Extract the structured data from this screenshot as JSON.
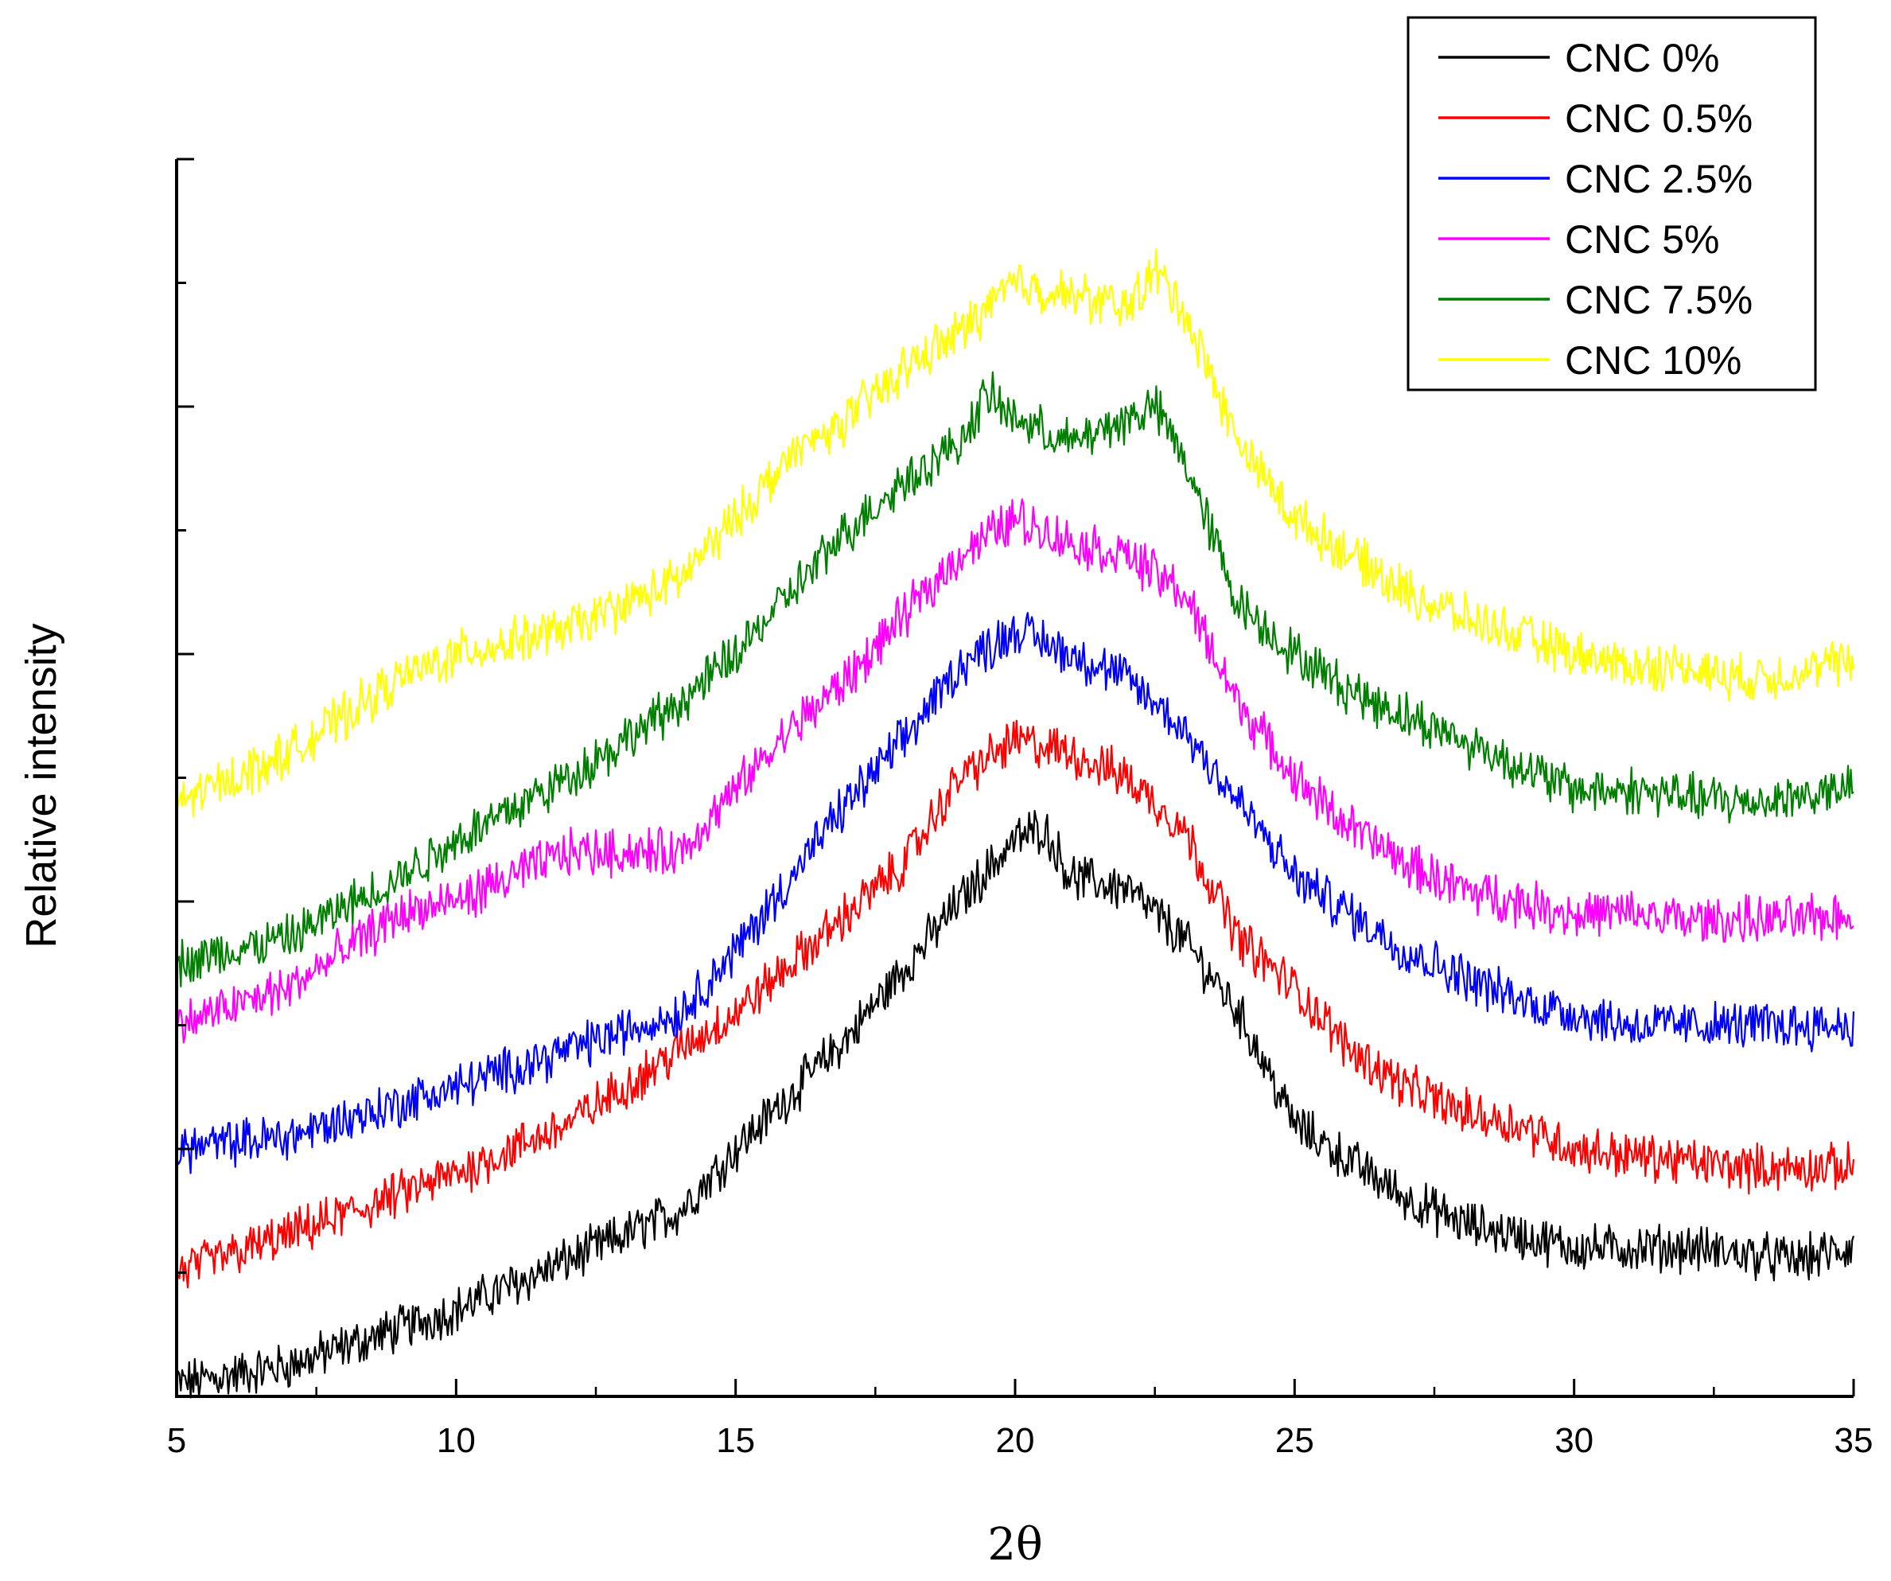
{
  "chart_data": {
    "type": "line",
    "title": "",
    "xlabel": "2θ",
    "ylabel": "Relative intensity",
    "xlim": [
      5,
      35
    ],
    "xticks": [
      5,
      10,
      15,
      20,
      25,
      30,
      35
    ],
    "ylim": [
      0,
      10
    ],
    "yticks_shown": false,
    "legend_position": "top-right",
    "grid": false,
    "series": [
      {
        "name": "CNC 0%",
        "color": "#000000",
        "points": [
          [
            5,
            0.1
          ],
          [
            7,
            0.25
          ],
          [
            10,
            0.7
          ],
          [
            12,
            1.1
          ],
          [
            14,
            1.5
          ],
          [
            15,
            2.0
          ],
          [
            17,
            2.9
          ],
          [
            19,
            4.0
          ],
          [
            20,
            4.5
          ],
          [
            20.5,
            4.6
          ],
          [
            21,
            4.2
          ],
          [
            22,
            4.1
          ],
          [
            23,
            3.7
          ],
          [
            24,
            3.1
          ],
          [
            25,
            2.2
          ],
          [
            26,
            1.9
          ],
          [
            27,
            1.6
          ],
          [
            28,
            1.4
          ],
          [
            29,
            1.3
          ],
          [
            30,
            1.2
          ],
          [
            31,
            1.2
          ],
          [
            32,
            1.2
          ],
          [
            33,
            1.15
          ],
          [
            34,
            1.1
          ],
          [
            35,
            1.2
          ]
        ]
      },
      {
        "name": "CNC 0.5%",
        "color": "#ff0000",
        "points": [
          [
            5,
            1.0
          ],
          [
            7,
            1.3
          ],
          [
            10,
            1.8
          ],
          [
            12,
            2.2
          ],
          [
            14,
            2.8
          ],
          [
            15,
            3.1
          ],
          [
            17,
            3.9
          ],
          [
            18,
            4.3
          ],
          [
            19,
            5.0
          ],
          [
            20,
            5.3
          ],
          [
            21,
            5.2
          ],
          [
            22,
            5.0
          ],
          [
            23,
            4.6
          ],
          [
            24,
            3.7
          ],
          [
            25,
            3.3
          ],
          [
            26,
            2.8
          ],
          [
            27,
            2.5
          ],
          [
            28,
            2.3
          ],
          [
            29,
            2.2
          ],
          [
            30,
            2.0
          ],
          [
            31,
            1.95
          ],
          [
            32,
            1.9
          ],
          [
            33,
            1.85
          ],
          [
            34,
            1.85
          ],
          [
            35,
            1.85
          ]
        ]
      },
      {
        "name": "CNC 2.5%",
        "color": "#0000ff",
        "points": [
          [
            5,
            2.0
          ],
          [
            7,
            2.1
          ],
          [
            10,
            2.5
          ],
          [
            12,
            2.8
          ],
          [
            14,
            3.1
          ],
          [
            15,
            3.6
          ],
          [
            16,
            4.2
          ],
          [
            17,
            4.8
          ],
          [
            18,
            5.3
          ],
          [
            19,
            5.9
          ],
          [
            20,
            6.2
          ],
          [
            21,
            6.0
          ],
          [
            22,
            5.8
          ],
          [
            23,
            5.4
          ],
          [
            24,
            4.8
          ],
          [
            25,
            4.2
          ],
          [
            26,
            3.9
          ],
          [
            27,
            3.6
          ],
          [
            28,
            3.4
          ],
          [
            29,
            3.2
          ],
          [
            30,
            3.1
          ],
          [
            31,
            3.0
          ],
          [
            32,
            3.0
          ],
          [
            33,
            3.0
          ],
          [
            34,
            3.0
          ],
          [
            35,
            3.0
          ]
        ]
      },
      {
        "name": "CNC 5%",
        "color": "#ff00ff",
        "points": [
          [
            5,
            3.0
          ],
          [
            7,
            3.3
          ],
          [
            9,
            3.9
          ],
          [
            10,
            4.0
          ],
          [
            12,
            4.4
          ],
          [
            14,
            4.4
          ],
          [
            15,
            4.9
          ],
          [
            16,
            5.4
          ],
          [
            17,
            5.8
          ],
          [
            18,
            6.3
          ],
          [
            19,
            6.8
          ],
          [
            20,
            7.1
          ],
          [
            21,
            6.9
          ],
          [
            22,
            6.8
          ],
          [
            23,
            6.5
          ],
          [
            24,
            5.6
          ],
          [
            25,
            5.0
          ],
          [
            26,
            4.6
          ],
          [
            27,
            4.3
          ],
          [
            28,
            4.1
          ],
          [
            29,
            4.0
          ],
          [
            30,
            3.9
          ],
          [
            31,
            3.9
          ],
          [
            32,
            3.85
          ],
          [
            33,
            3.85
          ],
          [
            34,
            3.85
          ],
          [
            35,
            3.9
          ]
        ]
      },
      {
        "name": "CNC 7.5%",
        "color": "#007f00",
        "points": [
          [
            5,
            3.5
          ],
          [
            7,
            3.7
          ],
          [
            9,
            4.2
          ],
          [
            10,
            4.5
          ],
          [
            12,
            5.0
          ],
          [
            14,
            5.6
          ],
          [
            15,
            6.0
          ],
          [
            16,
            6.5
          ],
          [
            17,
            7.0
          ],
          [
            18,
            7.4
          ],
          [
            19,
            7.7
          ],
          [
            19.5,
            8.1
          ],
          [
            20,
            7.9
          ],
          [
            21,
            7.7
          ],
          [
            22,
            7.9
          ],
          [
            22.5,
            8.0
          ],
          [
            23,
            7.6
          ],
          [
            24,
            6.4
          ],
          [
            25,
            6.0
          ],
          [
            26,
            5.7
          ],
          [
            27,
            5.5
          ],
          [
            28,
            5.3
          ],
          [
            29,
            5.1
          ],
          [
            30,
            4.9
          ],
          [
            31,
            4.9
          ],
          [
            32,
            4.85
          ],
          [
            33,
            4.8
          ],
          [
            34,
            4.85
          ],
          [
            35,
            4.9
          ]
        ]
      },
      {
        "name": "CNC 10%",
        "color": "#ffff00",
        "points": [
          [
            5,
            4.8
          ],
          [
            7,
            5.2
          ],
          [
            9,
            5.8
          ],
          [
            10,
            6.0
          ],
          [
            12,
            6.2
          ],
          [
            14,
            6.6
          ],
          [
            15,
            7.1
          ],
          [
            16,
            7.6
          ],
          [
            17,
            7.9
          ],
          [
            18,
            8.3
          ],
          [
            19,
            8.6
          ],
          [
            20,
            9.0
          ],
          [
            21,
            8.9
          ],
          [
            22,
            8.8
          ],
          [
            22.5,
            9.1
          ],
          [
            23,
            8.8
          ],
          [
            24,
            7.7
          ],
          [
            25,
            7.1
          ],
          [
            26,
            6.8
          ],
          [
            27,
            6.5
          ],
          [
            28,
            6.3
          ],
          [
            29,
            6.15
          ],
          [
            30,
            6.0
          ],
          [
            31,
            5.9
          ],
          [
            32,
            5.9
          ],
          [
            33,
            5.8
          ],
          [
            34,
            5.85
          ],
          [
            35,
            5.95
          ]
        ]
      }
    ]
  }
}
